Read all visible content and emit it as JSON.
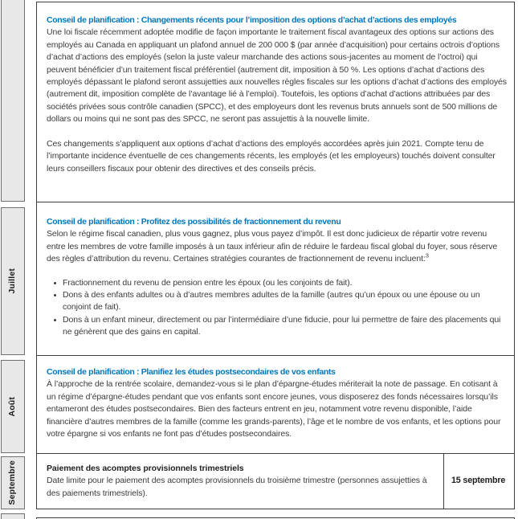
{
  "theme": {
    "heading_blue": "#0077bd",
    "body_text": "#3b3b3b",
    "month_cell_bg": "#e8e8e8",
    "month_border": "#707070",
    "content_border": "#3e3e3e"
  },
  "table": {
    "rows": [
      {
        "month_label": "",
        "section": {
          "title": "Conseil de planification : Changements récents pour l’imposition des options d’achat d’actions des employés",
          "paragraph_1": "Une loi fiscale récemment adoptée modifie de façon importante le traitement fiscal avantageux des options sur actions des employés au Canada en appliquant un plafond annuel de 200 000 $ (par année d’acquisition) pour certains octrois d’options d’achat d’actions des employés (selon la juste valeur marchande des actions sous-jacentes au moment de l’octroi) qui peuvent bénéficier d’un traitement fiscal préférentiel (autrement dit, imposition à 50 %. Les options d’achat d’actions des employés dépassant le plafond seront assujetties aux nouvelles règles fiscales sur les options d’achat d’actions des employés (autrement dit, imposition complète de l’avantage lié à l’emploi). Toutefois, les options d’achat d’actions attribuées par des sociétés privées sous contrôle canadien (SPCC), et des employeurs dont les revenus bruts annuels sont de 500 millions de dollars ou moins qui ne sont pas des SPCC, ne seront pas assujettis à la nouvelle limite.",
          "paragraph_2": "Ces changements s’appliquent aux options d’achat d’actions des employés accordées après juin 2021. Compte tenu de l’importante incidence éventuelle de ces changements récents, les employés (et les employeurs) touchés doivent consulter leurs conseillers fiscaux pour obtenir des directives et des conseils précis."
        }
      },
      {
        "month_label": "Juillet",
        "section": {
          "title": "Conseil de planification : Profitez des possibilités de fractionnement du revenu",
          "intro": "Selon le régime fiscal canadien, plus vous gagnez, plus vous payez d’impôt. Il est donc judicieux de répartir votre revenu entre les membres de votre famille imposés à un taux inférieur afin de réduire le fardeau fiscal global du foyer, sous réserve des règles d’attribution du revenu. Certaines stratégies courantes de fractionnement de revenu incluent:",
          "intro_superscript": "3",
          "bullets": [
            "Fractionnement du revenu de pension entre les époux (ou les conjoints de fait).",
            "Dons à des enfants adultes ou à d’autres membres adultes de la famille (autres qu’un époux ou une épouse ou un conjoint de fait).",
            "Dons à un enfant mineur, directement ou par l’intermédiaire d’une fiducie, pour lui permettre de faire des placements qui ne génèrent que des gains en capital."
          ]
        }
      },
      {
        "month_label": "Août",
        "section": {
          "title": "Conseil de planification : Planifiez les études postsecondaires de vos enfants",
          "paragraph": "À l’approche de la rentrée scolaire, demandez-vous si le plan d’épargne-études mériterait la note de passage. En cotisant à un régime d’épargne-études pendant que vos enfants sont encore jeunes, vous disposerez des fonds nécessaires lorsqu’ils entameront des études postsecondaires. Bien des facteurs entrent en jeu, notamment votre revenu disponible, l’aide financière d’autres membres de la famille (comme les grands-parents), l’âge et le nombre de vos enfants, et les options pour votre épargne si vos enfants ne font pas d’études postsecondaires."
        }
      },
      {
        "month_label": "Septembre",
        "section": {
          "title": "Paiement des acomptes provisionnels trimestriels",
          "paragraph": "Date limite pour le paiement des acomptes provisionnels du troisième trimestre (personnes assujetties à des paiements trimestriels).",
          "deadline": "15 septembre"
        }
      },
      {
        "month_label": ""
      }
    ]
  }
}
